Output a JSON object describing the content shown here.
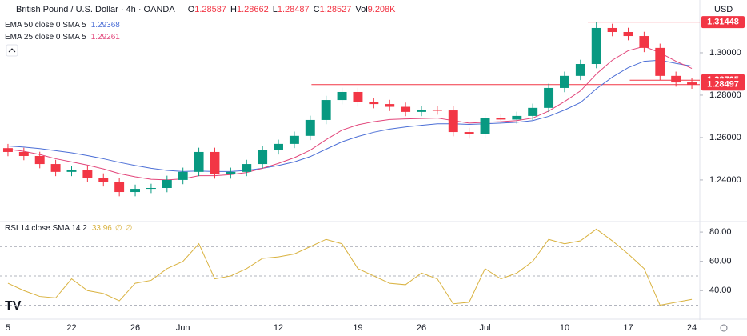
{
  "chart_data": {
    "type": "candlestick",
    "title": "British Pound / U.S. Dollar · 4h · OANDA",
    "ohlc": [
      {
        "label": "O",
        "value": 1.28587
      },
      {
        "label": "H",
        "value": 1.28662
      },
      {
        "label": "L",
        "value": 1.28487
      },
      {
        "label": "C",
        "value": 1.28527
      },
      {
        "label": "Vol",
        "value": "9.208K"
      }
    ],
    "categories": [
      "5",
      null,
      null,
      null,
      "22",
      null,
      null,
      null,
      "26",
      null,
      null,
      "Jun",
      null,
      null,
      null,
      null,
      null,
      "12",
      null,
      null,
      null,
      null,
      "19",
      null,
      null,
      null,
      "26",
      null,
      null,
      null,
      "Jul",
      null,
      null,
      null,
      null,
      "10",
      null,
      null,
      null,
      "17",
      null,
      null,
      null,
      "24"
    ],
    "open": [
      1.255,
      1.2532,
      1.2513,
      1.2475,
      1.2438,
      1.2445,
      1.2411,
      1.2389,
      1.2343,
      1.2358,
      1.2362,
      1.24,
      1.2438,
      1.2532,
      1.2426,
      1.2438,
      1.2475,
      1.254,
      1.257,
      1.2608,
      1.2683,
      1.2777,
      1.2815,
      1.2766,
      1.2758,
      1.2745,
      1.2721,
      1.273,
      1.2728,
      1.2626,
      1.2615,
      1.2691,
      1.2685,
      1.2702,
      1.274,
      1.2834,
      1.2891,
      1.2947,
      1.3117,
      1.3098,
      1.3079,
      1.3023,
      1.2891,
      1.286
    ],
    "high": [
      1.257,
      1.2552,
      1.2533,
      1.2495,
      1.2465,
      1.2465,
      1.2431,
      1.2409,
      1.2378,
      1.2382,
      1.242,
      1.2458,
      1.2552,
      1.2552,
      1.2458,
      1.2495,
      1.256,
      1.259,
      1.2628,
      1.2703,
      1.2797,
      1.2835,
      1.2835,
      1.2786,
      1.2778,
      1.2765,
      1.275,
      1.275,
      1.2748,
      1.2646,
      1.2711,
      1.2711,
      1.2722,
      1.276,
      1.2854,
      1.2911,
      1.2967,
      1.3144,
      1.3137,
      1.3118,
      1.3099,
      1.3043,
      1.2911,
      1.288
    ],
    "low": [
      1.2512,
      1.2493,
      1.2455,
      1.2418,
      1.2418,
      1.2391,
      1.2369,
      1.2323,
      1.2323,
      1.2338,
      1.2342,
      1.238,
      1.2418,
      1.2406,
      1.2406,
      1.2418,
      1.2455,
      1.252,
      1.255,
      1.2588,
      1.2663,
      1.2757,
      1.2746,
      1.2738,
      1.2725,
      1.2701,
      1.2701,
      1.2708,
      1.2606,
      1.2595,
      1.2595,
      1.2665,
      1.2665,
      1.2682,
      1.272,
      1.2814,
      1.2871,
      1.2927,
      1.3078,
      1.3059,
      1.3003,
      1.2871,
      1.284,
      1.283
    ],
    "close": [
      1.2532,
      1.2513,
      1.2475,
      1.2438,
      1.2445,
      1.2411,
      1.2389,
      1.2343,
      1.2358,
      1.2362,
      1.24,
      1.2438,
      1.2532,
      1.2426,
      1.2438,
      1.2475,
      1.254,
      1.257,
      1.2608,
      1.2683,
      1.2777,
      1.2815,
      1.2766,
      1.2758,
      1.2745,
      1.2721,
      1.273,
      1.2728,
      1.2626,
      1.2615,
      1.2691,
      1.2685,
      1.2702,
      1.274,
      1.2834,
      1.2891,
      1.2947,
      1.3117,
      1.3098,
      1.3079,
      1.3023,
      1.2891,
      1.286,
      1.285
    ],
    "up_color": "#089981",
    "down_color": "#f23645",
    "series": [
      {
        "name": "EMA 50 close 0 SMA 5",
        "color": "#4c6fd6",
        "last": 1.29368,
        "values": [
          1.256,
          1.2555,
          1.2548,
          1.2538,
          1.2528,
          1.2515,
          1.25,
          1.2483,
          1.2468,
          1.2455,
          1.2445,
          1.244,
          1.2442,
          1.244,
          1.244,
          1.2445,
          1.2455,
          1.2468,
          1.2485,
          1.251,
          1.2545,
          1.258,
          1.2605,
          1.2625,
          1.264,
          1.265,
          1.2658,
          1.2665,
          1.2665,
          1.2662,
          1.2665,
          1.2668,
          1.2672,
          1.268,
          1.27,
          1.273,
          1.2765,
          1.283,
          1.2885,
          1.293,
          1.296,
          1.2965,
          1.295,
          1.2937
        ]
      },
      {
        "name": "EMA 25 close 0 SMA 5",
        "color": "#e2457a",
        "last": 1.29261,
        "values": [
          1.2545,
          1.2535,
          1.252,
          1.25,
          1.2485,
          1.247,
          1.2452,
          1.243,
          1.2415,
          1.2403,
          1.24,
          1.2405,
          1.242,
          1.242,
          1.2425,
          1.2435,
          1.2455,
          1.2478,
          1.2505,
          1.254,
          1.259,
          1.2635,
          1.266,
          1.2675,
          1.2685,
          1.2688,
          1.269,
          1.2692,
          1.268,
          1.2668,
          1.2672,
          1.2675,
          1.268,
          1.2692,
          1.2725,
          1.277,
          1.282,
          1.29,
          1.2965,
          1.301,
          1.303,
          1.3,
          1.296,
          1.2926
        ]
      }
    ],
    "y_unit": "USD",
    "ylim": [
      1.2211,
      1.3249
    ],
    "yticks": [
      {
        "value": 1.3,
        "label": "1.30000"
      },
      {
        "value": 1.28,
        "label": "1.28000"
      },
      {
        "value": 1.26,
        "label": "1.26000"
      },
      {
        "value": 1.24,
        "label": "1.24000"
      }
    ],
    "levels": [
      1.31448,
      1.28705,
      1.28497
    ],
    "level_color": "#f23645",
    "grid": false,
    "rsi": {
      "name": "RSI 14 close SMA 14 2",
      "last": 33.96,
      "extra": [
        "∅",
        "∅"
      ],
      "color": "#d9b23f",
      "values": [
        45,
        40,
        36,
        35,
        48,
        40,
        38,
        33,
        45,
        47,
        55,
        60,
        72,
        48,
        50,
        55,
        62,
        63,
        65,
        70,
        75,
        72,
        55,
        50,
        45,
        44,
        52,
        48,
        31,
        32,
        55,
        48,
        52,
        60,
        75,
        72,
        74,
        82,
        74,
        65,
        55,
        30,
        32,
        34
      ],
      "ylim": [
        21,
        86.6
      ],
      "yticks": [
        {
          "value": 80,
          "label": "80.00"
        },
        {
          "value": 60,
          "label": "60.00"
        },
        {
          "value": 40,
          "label": "40.00"
        }
      ],
      "levels": [
        70,
        50,
        30
      ]
    }
  }
}
